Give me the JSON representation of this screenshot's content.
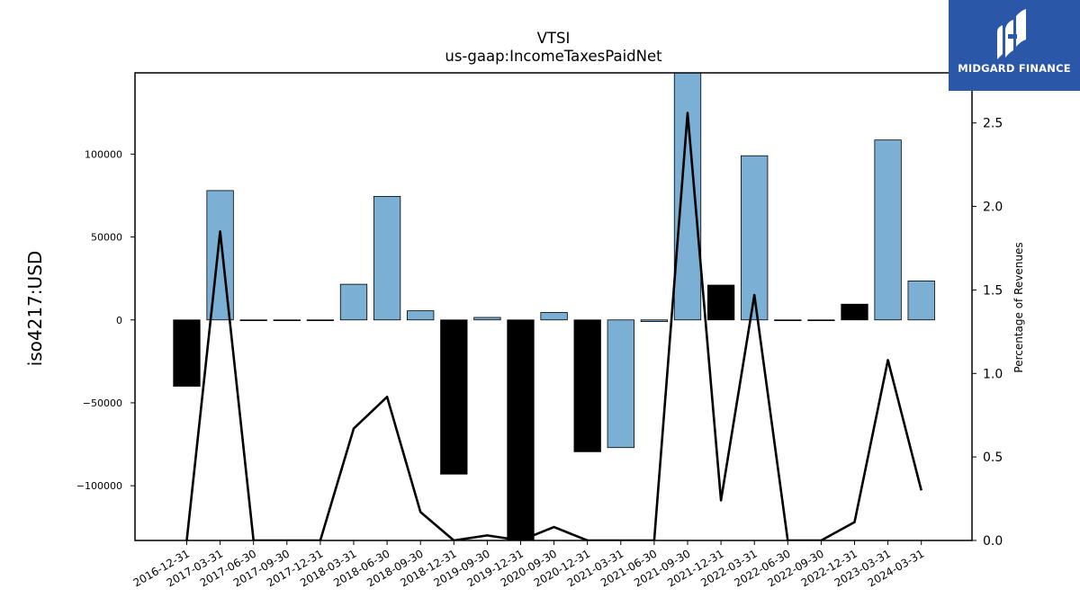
{
  "chart_data": {
    "type": "bar",
    "title": "VTSI",
    "subtitle": "us-gaap:IncomeTaxesPaidNet",
    "ylabel": "iso4217:USD",
    "y2label": "Percentage of Revenues",
    "categories": [
      "2016-12-31",
      "2017-03-31",
      "2017-06-30",
      "2017-09-30",
      "2017-12-31",
      "2018-03-31",
      "2018-06-30",
      "2018-09-30",
      "2018-12-31",
      "2019-09-30",
      "2019-12-31",
      "2020-09-30",
      "2020-12-31",
      "2021-03-31",
      "2021-06-30",
      "2021-09-30",
      "2021-12-31",
      "2022-03-31",
      "2022-06-30",
      "2022-09-30",
      "2022-12-31",
      "2023-03-31",
      "2024-03-31"
    ],
    "series": [
      {
        "kind": "bar",
        "values": [
          -40000,
          78000,
          0,
          0,
          0,
          21500,
          74500,
          5500,
          -93000,
          1500,
          -133000,
          4500,
          -79500,
          -77000,
          -1000,
          149000,
          21000,
          99000,
          0,
          0,
          9500,
          108500,
          23500
        ],
        "colors": [
          "#000000",
          "#7bafd4",
          "#000000",
          "#000000",
          "#000000",
          "#7bafd4",
          "#7bafd4",
          "#7bafd4",
          "#000000",
          "#7bafd4",
          "#000000",
          "#7bafd4",
          "#000000",
          "#7bafd4",
          "#7bafd4",
          "#7bafd4",
          "#000000",
          "#7bafd4",
          "#000000",
          "#000000",
          "#000000",
          "#7bafd4",
          "#7bafd4"
        ]
      },
      {
        "kind": "line",
        "axis": "right",
        "values": [
          0,
          1.85,
          0,
          0,
          0,
          0.67,
          0.86,
          0.17,
          0,
          0.03,
          0,
          0.08,
          0,
          0,
          0,
          2.56,
          0.24,
          1.47,
          0,
          0,
          0.11,
          1.08,
          0.3
        ]
      }
    ],
    "ylim": [
      -133000,
      149000
    ],
    "y2lim": [
      0,
      2.8
    ],
    "yticks": [
      -100000,
      -50000,
      0,
      50000,
      100000
    ],
    "ytick_labels": [
      "−100000",
      "−50000",
      "0",
      "50000",
      "100000"
    ],
    "y2ticks": [
      0,
      0.5,
      1,
      1.5,
      2,
      2.5
    ],
    "y2tick_labels": [
      "0.0",
      "0.5",
      "1.0",
      "1.5",
      "2.0",
      "2.5"
    ],
    "grid": false,
    "colors": {
      "positive": "#7bafd4",
      "negative": "#000000",
      "line": "#000000"
    }
  },
  "logo": {
    "text": "MIDGARD FINANCE",
    "background": "#2a57a8"
  }
}
